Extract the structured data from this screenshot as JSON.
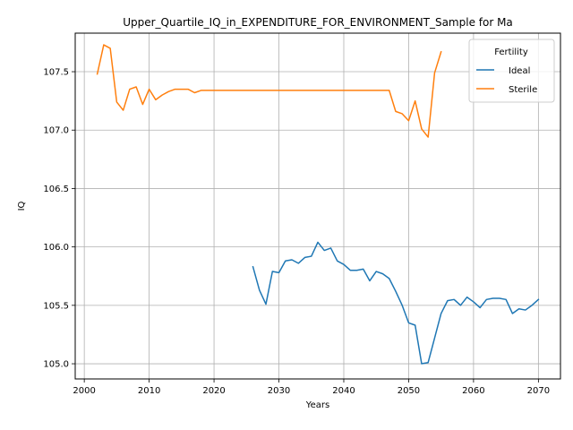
{
  "chart_data": {
    "type": "line",
    "title": "Upper_Quartile_IQ_in_EXPENDITURE_FOR_ENVIRONMENT_Sample for Ma",
    "xlabel": "Years",
    "ylabel": "IQ",
    "xlim": [
      1998.6,
      2073.4
    ],
    "ylim": [
      104.87,
      107.83
    ],
    "xticks": [
      2000,
      2010,
      2020,
      2030,
      2040,
      2050,
      2060,
      2070
    ],
    "yticks": [
      105.0,
      105.5,
      106.0,
      106.5,
      107.0,
      107.5
    ],
    "xtick_labels": [
      "2000",
      "2010",
      "2020",
      "2030",
      "2040",
      "2050",
      "2060",
      "2070"
    ],
    "ytick_labels": [
      "105.0",
      "105.5",
      "106.0",
      "106.5",
      "107.0",
      "107.5"
    ],
    "grid": true,
    "legend": {
      "title": "Fertility",
      "position": "upper right"
    },
    "series": [
      {
        "name": "Ideal",
        "color": "#1f77b4",
        "x": [
          2026,
          2027,
          2028,
          2029,
          2030,
          2031,
          2032,
          2033,
          2034,
          2035,
          2036,
          2037,
          2038,
          2039,
          2040,
          2041,
          2042,
          2043,
          2044,
          2045,
          2046,
          2047,
          2048,
          2049,
          2050,
          2051,
          2052,
          2053,
          2054,
          2055,
          2056,
          2057,
          2058,
          2059,
          2060,
          2061,
          2062,
          2063,
          2064,
          2065,
          2066,
          2067,
          2068,
          2069,
          2070
        ],
        "y": [
          105.83,
          105.63,
          105.51,
          105.79,
          105.78,
          105.88,
          105.89,
          105.86,
          105.91,
          105.92,
          106.04,
          105.97,
          105.99,
          105.88,
          105.85,
          105.8,
          105.8,
          105.81,
          105.71,
          105.79,
          105.77,
          105.73,
          105.62,
          105.5,
          105.35,
          105.33,
          105.0,
          105.01,
          105.22,
          105.43,
          105.54,
          105.55,
          105.5,
          105.57,
          105.53,
          105.48,
          105.55,
          105.56,
          105.56,
          105.55,
          105.43,
          105.47,
          105.46,
          105.5,
          105.55
        ]
      },
      {
        "name": "Sterile",
        "color": "#ff7f0e",
        "x": [
          2002,
          2003,
          2004,
          2005,
          2006,
          2007,
          2008,
          2009,
          2010,
          2011,
          2012,
          2013,
          2014,
          2015,
          2016,
          2017,
          2018,
          2019,
          2020,
          2021,
          2022,
          2023,
          2024,
          2025,
          2026,
          2027,
          2028,
          2029,
          2030,
          2031,
          2032,
          2033,
          2034,
          2035,
          2036,
          2037,
          2038,
          2039,
          2040,
          2041,
          2042,
          2043,
          2044,
          2045,
          2046,
          2047,
          2048,
          2049,
          2050,
          2051,
          2052,
          2053,
          2054,
          2055
        ],
        "y": [
          107.48,
          107.73,
          107.7,
          107.24,
          107.17,
          107.35,
          107.37,
          107.22,
          107.35,
          107.26,
          107.3,
          107.33,
          107.35,
          107.35,
          107.35,
          107.32,
          107.34,
          107.34,
          107.34,
          107.34,
          107.34,
          107.34,
          107.34,
          107.34,
          107.34,
          107.34,
          107.34,
          107.34,
          107.34,
          107.34,
          107.34,
          107.34,
          107.34,
          107.34,
          107.34,
          107.34,
          107.34,
          107.34,
          107.34,
          107.34,
          107.34,
          107.34,
          107.34,
          107.34,
          107.34,
          107.34,
          107.16,
          107.14,
          107.08,
          107.25,
          107.01,
          106.94,
          107.49,
          107.67
        ]
      }
    ]
  }
}
